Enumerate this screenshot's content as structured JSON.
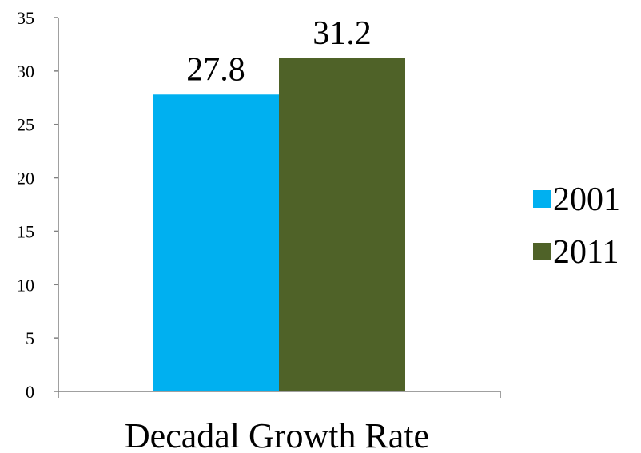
{
  "chart_data": {
    "type": "bar",
    "categories": [
      "Decadal Growth Rate"
    ],
    "series": [
      {
        "name": "2001",
        "values": [
          27.8
        ],
        "color": "#00b0f0"
      },
      {
        "name": "2011",
        "values": [
          31.2
        ],
        "color": "#4f6228"
      }
    ],
    "data_labels": [
      "27.8",
      "31.2"
    ],
    "ylim": [
      0,
      35
    ],
    "y_ticks": [
      "0",
      "5",
      "10",
      "15",
      "20",
      "25",
      "30",
      "35"
    ],
    "grid": false,
    "legend_position": "right"
  }
}
